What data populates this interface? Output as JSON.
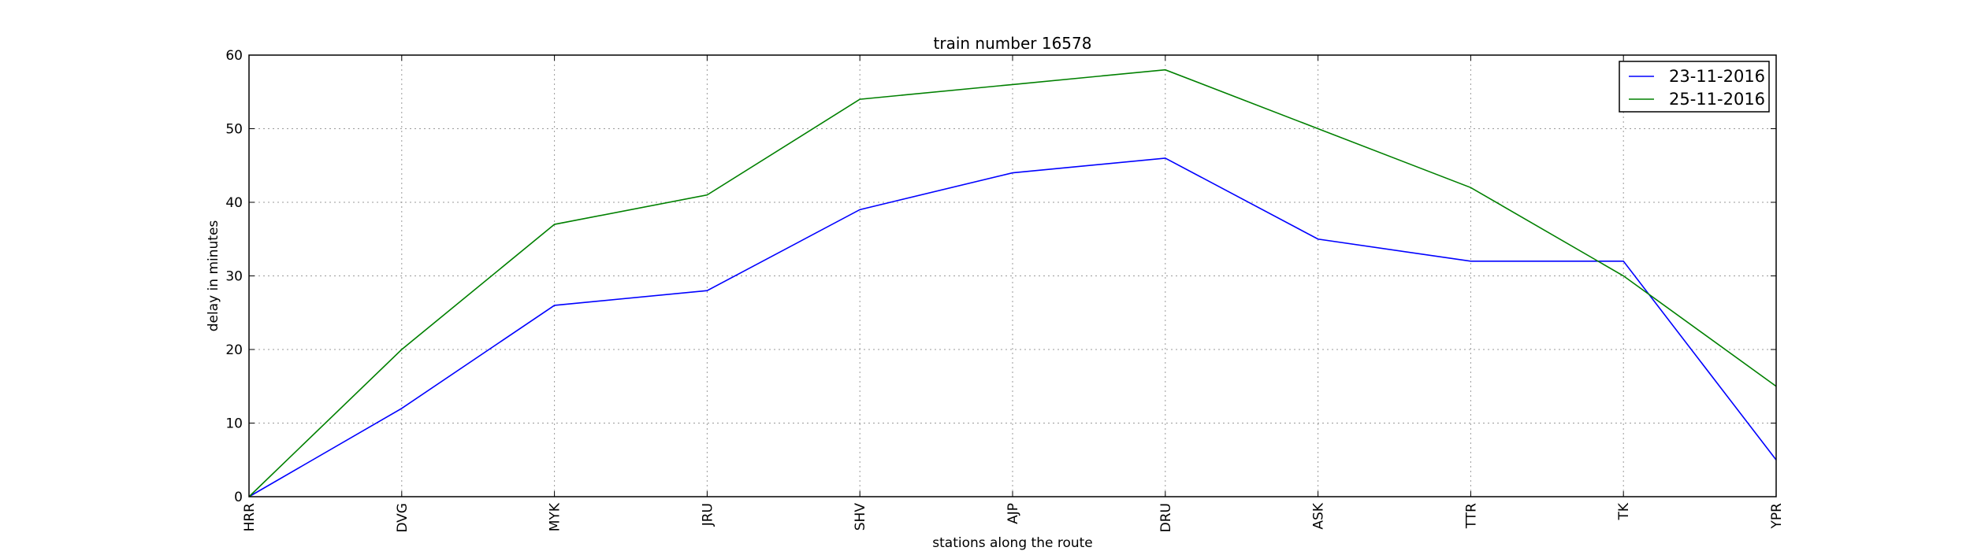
{
  "chart_data": {
    "type": "line",
    "title": "train number 16578",
    "xlabel": "stations along the route",
    "ylabel": "delay in minutes",
    "categories": [
      "HRR",
      "DVG",
      "MYK",
      "JRU",
      "SHV",
      "AJP",
      "DRU",
      "ASK",
      "TTR",
      "TK",
      "YPR"
    ],
    "ylim": [
      0,
      60
    ],
    "yticks": [
      0,
      10,
      20,
      30,
      40,
      50,
      60
    ],
    "grid": true,
    "legend_position": "top-right",
    "series": [
      {
        "name": "23-11-2016",
        "color": "#0000ff",
        "values": [
          0,
          12,
          26,
          28,
          39,
          44,
          46,
          35,
          32,
          32,
          5
        ]
      },
      {
        "name": "25-11-2016",
        "color": "#008000",
        "values": [
          0,
          20,
          37,
          41,
          54,
          56,
          58,
          50,
          42,
          30,
          15
        ]
      }
    ]
  }
}
